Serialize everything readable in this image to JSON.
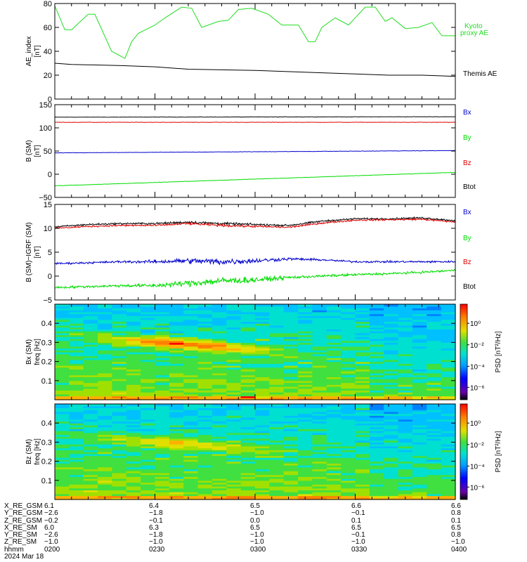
{
  "theme": {
    "kyoto_color": "#22dd22",
    "themis_color": "#000000",
    "bx_color": "#0000cc",
    "by_color": "#00dd00",
    "bz_color": "#dd0000",
    "btot_color": "#000000"
  },
  "chart_data": [
    {
      "type": "line",
      "panel": "ae-index",
      "ylabel": [
        "AE_index",
        "[nT]"
      ],
      "ylim": [
        0,
        80
      ],
      "yticks": [
        "0",
        "20",
        "40",
        "60",
        "80"
      ],
      "x_minutes": [
        0,
        120
      ],
      "series": [
        {
          "name": "Kyoto proxy AE",
          "color": "#22dd22",
          "x": [
            0,
            3,
            5,
            10,
            12,
            17,
            21,
            23,
            25,
            30,
            33,
            38,
            41,
            44,
            49,
            52,
            55,
            59,
            64,
            68,
            73,
            76,
            78,
            80,
            84,
            88,
            93,
            96,
            99,
            101,
            105,
            109,
            113,
            116,
            120
          ],
          "y": [
            78,
            58,
            58,
            71,
            71,
            40,
            34,
            48,
            55,
            62,
            68,
            77,
            76,
            60,
            65,
            66,
            75,
            76,
            71,
            62,
            62,
            48,
            48,
            60,
            68,
            62,
            77,
            77,
            65,
            68,
            59,
            60,
            64,
            53,
            53
          ]
        },
        {
          "name": "Themis AE",
          "color": "#000000",
          "x": [
            0,
            5,
            20,
            30,
            40,
            60,
            80,
            100,
            110,
            120
          ],
          "y": [
            30,
            29,
            28,
            27,
            25,
            24,
            22,
            20,
            20,
            19
          ]
        }
      ]
    },
    {
      "type": "line",
      "panel": "b-sm",
      "ylabel": [
        "B (SM)",
        "[nT]"
      ],
      "ylim": [
        -50,
        150
      ],
      "yticks": [
        "−50",
        "0",
        "50",
        "100",
        "150"
      ],
      "x_minutes": [
        0,
        120
      ],
      "series": [
        {
          "name": "Bx",
          "color": "#000000",
          "x": [
            0,
            120
          ],
          "y": [
            123,
            124
          ]
        },
        {
          "name": "By",
          "color": "#dd0000",
          "x": [
            0,
            120
          ],
          "y": [
            112,
            112
          ]
        },
        {
          "name": "Bz",
          "color": "#0000cc",
          "x": [
            0,
            120
          ],
          "y": [
            46,
            51
          ]
        },
        {
          "name": "Btot",
          "color": "#00dd00",
          "x": [
            0,
            120
          ],
          "y": [
            -25,
            4
          ]
        }
      ]
    },
    {
      "type": "line",
      "panel": "b-minus-igrf",
      "ylabel": [
        "B (SM)−IGRF (SM)",
        "[nT]"
      ],
      "ylim": [
        -5,
        15
      ],
      "yticks": [
        "−5",
        "0",
        "5",
        "10",
        "15"
      ],
      "x_minutes": [
        0,
        120
      ],
      "series": [
        {
          "name": "Btot",
          "color": "#000000",
          "x": [
            0,
            10,
            20,
            30,
            40,
            50,
            60,
            70,
            80,
            90,
            100,
            110,
            120
          ],
          "y": [
            10.3,
            10.8,
            11,
            11,
            11.3,
            11,
            10.8,
            10.6,
            11.5,
            12,
            12,
            12.2,
            11.6
          ]
        },
        {
          "name": "Bx",
          "color": "#dd0000",
          "x": [
            0,
            10,
            20,
            30,
            40,
            50,
            60,
            70,
            80,
            90,
            100,
            110,
            120
          ],
          "y": [
            10,
            10.4,
            10.6,
            10.6,
            11,
            10.6,
            10.4,
            10.2,
            11.1,
            11.7,
            11.8,
            11.9,
            11.3
          ]
        },
        {
          "name": "By",
          "color": "#0000cc",
          "x": [
            0,
            10,
            20,
            30,
            40,
            50,
            60,
            70,
            80,
            90,
            100,
            110,
            120
          ],
          "y": [
            2.6,
            2.8,
            3,
            3,
            3.2,
            3,
            3.2,
            3.6,
            3.4,
            3,
            3,
            3,
            3
          ]
        },
        {
          "name": "Bz",
          "color": "#00dd00",
          "x": [
            0,
            10,
            20,
            30,
            40,
            50,
            60,
            70,
            80,
            90,
            100,
            110,
            120
          ],
          "y": [
            -2.4,
            -2.2,
            -2,
            -2,
            -1.5,
            -1,
            -0.8,
            -0.3,
            0,
            0.3,
            0.5,
            0.8,
            1.2
          ]
        }
      ]
    },
    {
      "type": "heatmap",
      "panel": "bx-spectrogram",
      "ylabel": [
        "Bx (SM)",
        "freq [Hz]"
      ],
      "ylim": [
        0,
        0.5
      ],
      "yticks": [
        "0.1",
        "0.2",
        "0.3",
        "0.4"
      ],
      "colorbar_label": "PSD [nT²/Hz]",
      "colorbar_ticks": [
        "10⁰",
        "10⁻²",
        "10⁻⁴",
        "10⁻⁶"
      ]
    },
    {
      "type": "heatmap",
      "panel": "bz-spectrogram",
      "ylabel": [
        "Bz (SM)",
        "freq [Hz]"
      ],
      "ylim": [
        0,
        0.5
      ],
      "yticks": [
        "0.1",
        "0.2",
        "0.3",
        "0.4"
      ],
      "colorbar_label": "PSD [nT²/Hz]",
      "colorbar_ticks": [
        "10⁰",
        "10⁻²",
        "10⁻⁴",
        "10⁻⁶"
      ]
    }
  ],
  "legends": {
    "ae": {
      "kyoto_line1": "Kyoto",
      "kyoto_line2": "proxy AE",
      "themis": "Themis AE"
    },
    "b": [
      "Bx",
      "By",
      "Bz",
      "Btot"
    ],
    "db": [
      "Bx",
      "By",
      "Bz",
      "Btot"
    ]
  },
  "ephemeris": {
    "rows": [
      {
        "label": "X_RE_GSM",
        "values": [
          "6.1",
          "6.4",
          "6.5",
          "6.6",
          "6.6"
        ]
      },
      {
        "label": "Y_RE_GSM",
        "values": [
          "−2.6",
          "−1.8",
          "−1.0",
          "−0.1",
          "0.8"
        ]
      },
      {
        "label": "Z_RE_GSM",
        "values": [
          "−0.2",
          "−0.1",
          "0.0",
          "0.1",
          "0.1"
        ]
      },
      {
        "label": "X_RE_SM",
        "values": [
          "6.0",
          "6.3",
          "6.5",
          "6.5",
          "6.5"
        ]
      },
      {
        "label": "Y_RE_SM",
        "values": [
          "−2.6",
          "−1.8",
          "−1.0",
          "−0.1",
          "0.8"
        ]
      },
      {
        "label": "Z_RE_SM",
        "values": [
          "−1.0",
          "−1.0",
          "−1.0",
          "−1.0",
          "−1.0"
        ]
      },
      {
        "label": "hhmm",
        "values": [
          "0200",
          "0230",
          "0300",
          "0330",
          "0400"
        ]
      }
    ],
    "date": "2024 Mar 18"
  }
}
